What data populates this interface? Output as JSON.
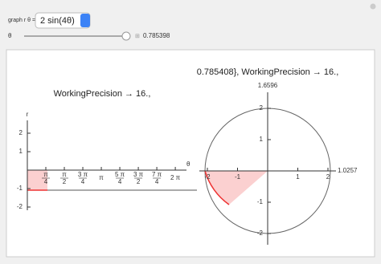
{
  "controls": {
    "graph_label": "graph r θ =",
    "function": "2 sin(4θ)",
    "slider_label": "θ",
    "slider_value": "0.785398"
  },
  "left_plot": {
    "text_lines": [
      "WorkingPrecision → 16.,"
    ],
    "y_axis_label": "r",
    "x_axis_label": "θ",
    "yticks": [
      2,
      1,
      -1,
      -2
    ],
    "xticks": [
      {
        "value": 0.785398,
        "label": "π",
        "den": "4"
      },
      {
        "value": 1.570796,
        "label": "π",
        "den": "2"
      },
      {
        "value": 2.356194,
        "label": "3 π",
        "den": "4"
      },
      {
        "value": 3.141593,
        "label": "π"
      },
      {
        "value": 3.926991,
        "label": "5 π",
        "den": "4"
      },
      {
        "value": 4.712389,
        "label": "3 π",
        "den": "2"
      },
      {
        "value": 5.497787,
        "label": "7 π",
        "den": "4"
      },
      {
        "value": 6.283185,
        "label": "2 π"
      }
    ]
  },
  "right_plot": {
    "text_lines": [
      "0.785408}, WorkingPrecision → 16.,"
    ],
    "top_label": "1.6596",
    "right_label": "1.0257",
    "xticks": [
      -2,
      -1,
      1,
      2
    ],
    "yticks": [
      2,
      1,
      -1,
      -2
    ]
  }
}
